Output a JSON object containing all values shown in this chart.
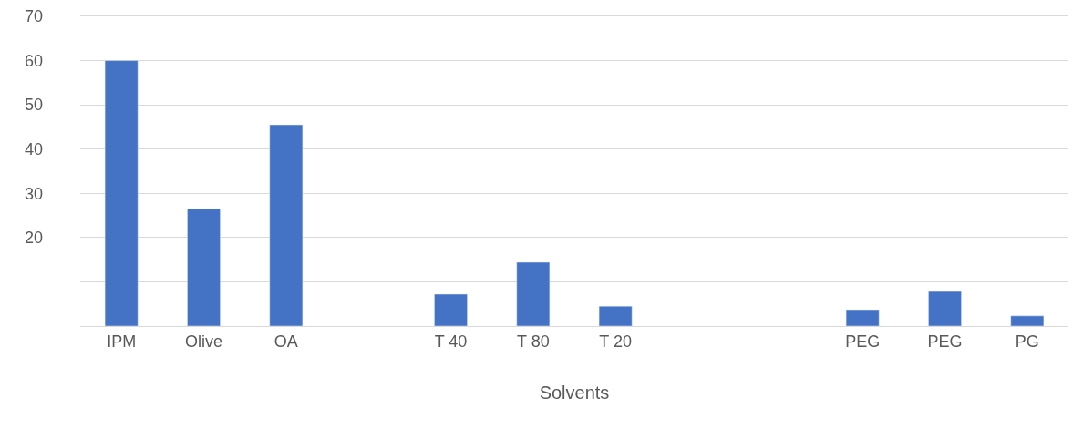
{
  "chart_data": {
    "type": "bar",
    "xlabel": "Solvents",
    "categories": [
      "IPM",
      "Olive",
      "OA",
      null,
      "T 40",
      "T 80",
      "T 20",
      null,
      null,
      "PEG",
      "PEG",
      "PG"
    ],
    "values": [
      60,
      26.5,
      45.5,
      null,
      7.2,
      14.4,
      4.5,
      null,
      null,
      3.7,
      7.8,
      2.3
    ],
    "color": "#4472c4",
    "ylim": [
      0,
      70
    ],
    "yticks": [
      {
        "value": 0,
        "label": null
      },
      {
        "value": 10,
        "label": null
      },
      20,
      30,
      40,
      50,
      60,
      70
    ],
    "grid": "y"
  }
}
